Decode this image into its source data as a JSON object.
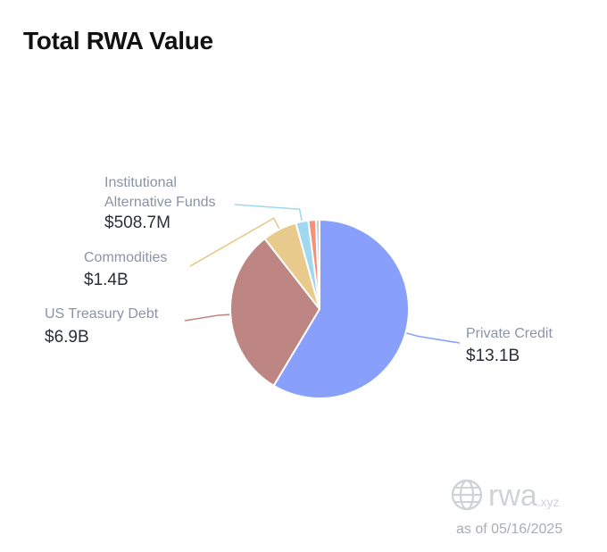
{
  "title": "Total RWA Value",
  "chart_data": {
    "type": "pie",
    "title": "Total RWA Value",
    "slices": [
      {
        "label": "Private Credit",
        "value_text": "$13.1B",
        "value": 13.1,
        "color": "#88a0fb",
        "labeled": true
      },
      {
        "label": "US Treasury Debt",
        "value_text": "$6.9B",
        "value": 6.9,
        "color": "#be8682",
        "labeled": true
      },
      {
        "label": "Commodities",
        "value_text": "$1.4B",
        "value": 1.4,
        "color": "#e8ca8c",
        "labeled": true
      },
      {
        "label": "Institutional Alternative Funds",
        "label_lines": [
          "Institutional",
          "Alternative Funds"
        ],
        "value_text": "$508.7M",
        "value": 0.5087,
        "color": "#9fd8f0",
        "labeled": true
      },
      {
        "label": "",
        "value_text": "",
        "value": 0.3,
        "color": "#f3917a",
        "labeled": false
      },
      {
        "label": "",
        "value_text": "",
        "value": 0.15,
        "color": "#c9ccd8",
        "labeled": false
      }
    ]
  },
  "footer": {
    "brand": "rwa",
    "brand_tld": ".xyz",
    "as_of": "as of 05/16/2025",
    "logo_icon": "globe-icon"
  }
}
